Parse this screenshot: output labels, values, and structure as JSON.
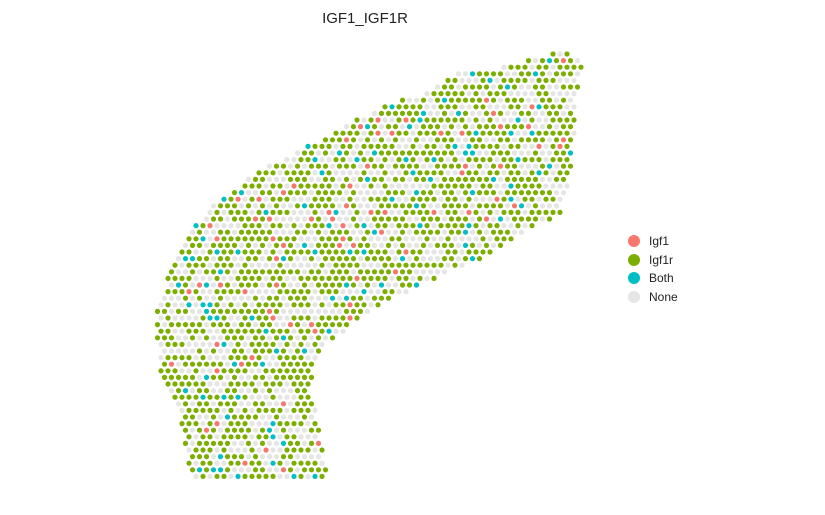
{
  "chart_data": {
    "type": "scatter",
    "title": "IGF1_IGF1R",
    "xlabel": "",
    "ylabel": "",
    "grid": false,
    "legend_position": "right",
    "categories": [
      {
        "name": "Igf1",
        "color": "#F8766D"
      },
      {
        "name": "Igf1r",
        "color": "#7CAE00"
      },
      {
        "name": "Both",
        "color": "#00BFC4"
      },
      {
        "name": "None",
        "color": "#E5E5E5"
      }
    ],
    "category_proportions": {
      "Igf1": 0.04,
      "Igf1r": 0.55,
      "Both": 0.05,
      "None": 0.36
    }
  }
}
